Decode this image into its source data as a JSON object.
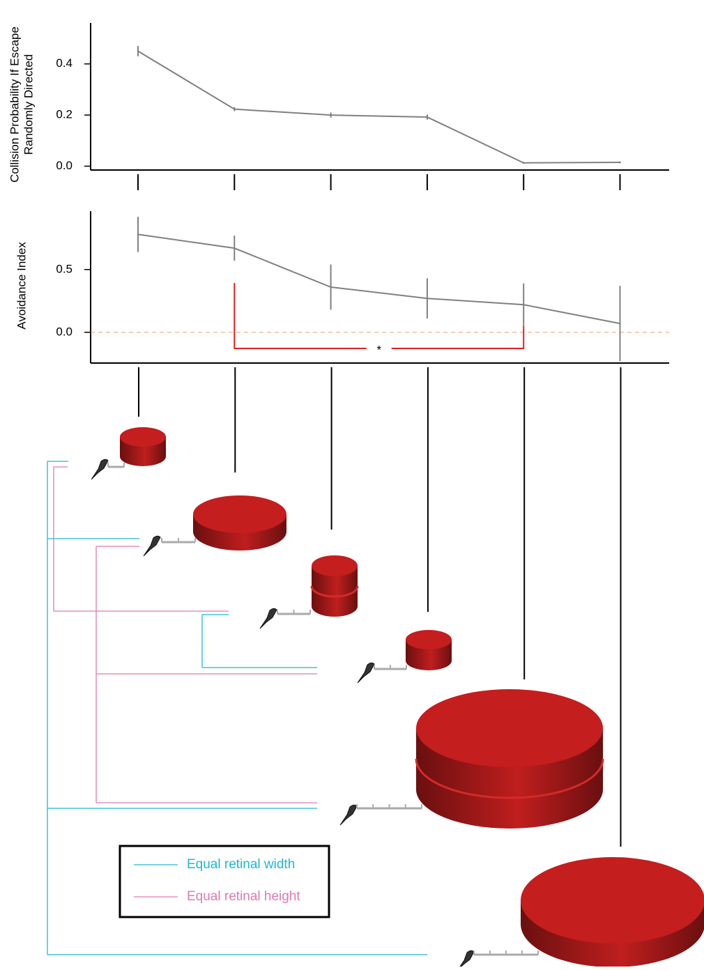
{
  "chart_data": [
    {
      "type": "line",
      "ylabel": [
        "Collision Probability If Escape",
        "Randomly Directed"
      ],
      "categories": [
        null,
        null,
        null,
        null,
        null,
        null
      ],
      "series": [
        {
          "color": "#808080",
          "values": [
            0.45,
            0.223,
            0.2,
            0.192,
            0.013,
            0.015
          ],
          "errors": [
            0.02,
            0.008,
            0.01,
            0.01,
            0.004,
            0.004
          ]
        }
      ],
      "ylim": [
        -0.015,
        0.56
      ],
      "yticks": [
        {
          "value": 0,
          "label": "0.0"
        },
        {
          "value": 0.2,
          "label": "0.2"
        },
        {
          "value": 0.4,
          "label": "0.4"
        }
      ]
    },
    {
      "type": "line",
      "ylabel": [
        "Avoidance  Index"
      ],
      "categories": [
        null,
        null,
        null,
        null,
        null,
        null
      ],
      "series": [
        {
          "color": "#808080",
          "values": [
            0.78,
            0.67,
            0.36,
            0.27,
            0.22,
            0.07
          ],
          "errors": [
            0.14,
            0.1,
            0.18,
            0.16,
            0.17,
            0.3
          ]
        }
      ],
      "ylim": [
        -0.245,
        0.965
      ],
      "yticks": [
        {
          "value": 0,
          "label": "0.0"
        },
        0.5
      ],
      "zero_line": {
        "color": "#e8a070",
        "dashed": true
      },
      "significance": {
        "label": "*",
        "between": [
          1,
          4
        ],
        "color": "#e02020"
      }
    }
  ],
  "diagram": {
    "legend": [
      {
        "label": "Equal retinal width",
        "color": "#1fb8d0"
      },
      {
        "label": "Equal retinal height",
        "color": "#e07ab0"
      }
    ]
  }
}
